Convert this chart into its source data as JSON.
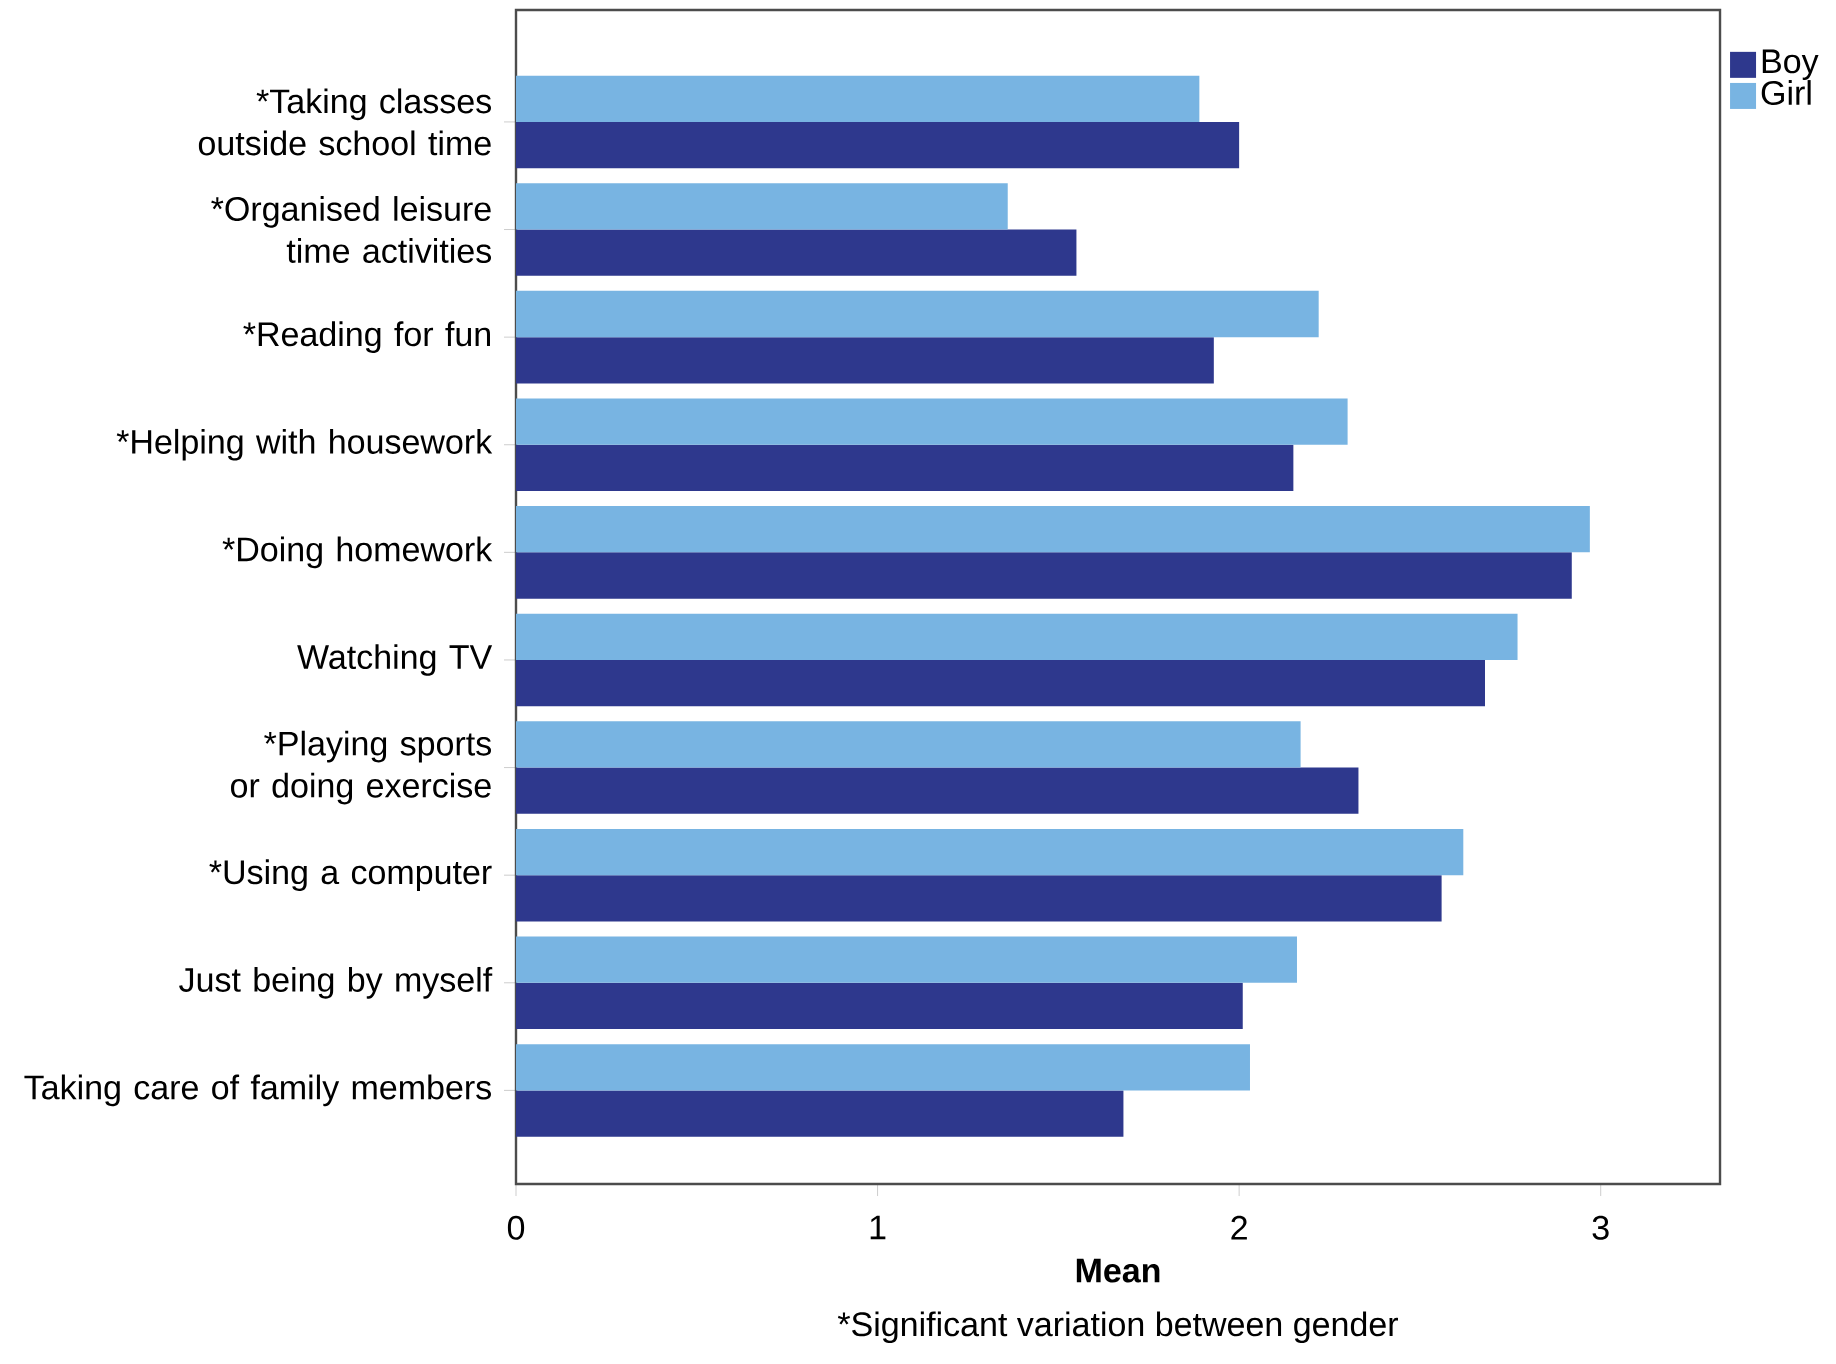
{
  "chart_data": {
    "type": "bar",
    "orientation": "horizontal",
    "categories": [
      "*Taking classes outside school time",
      "*Organised leisure time activities",
      "*Reading for fun",
      "*Helping with housework",
      "*Doing homework",
      "Watching TV",
      "*Playing sports or doing exercise",
      "*Using a computer",
      "Just being by myself",
      "Taking care of family members"
    ],
    "series": [
      {
        "name": "Boy",
        "color": "#2e388d",
        "values": [
          2.0,
          1.55,
          1.93,
          2.15,
          2.92,
          2.68,
          2.33,
          2.56,
          2.01,
          1.68
        ]
      },
      {
        "name": "Girl",
        "color": "#78b4e2",
        "values": [
          1.89,
          1.36,
          2.22,
          2.3,
          2.97,
          2.77,
          2.17,
          2.62,
          2.16,
          2.03
        ]
      }
    ],
    "xlabel": "Mean",
    "annotations": [
      "*Significant variation between gender"
    ],
    "xlim": [
      0,
      3.33
    ],
    "xticks": [
      0,
      1,
      2,
      3
    ],
    "legend": "top right"
  }
}
